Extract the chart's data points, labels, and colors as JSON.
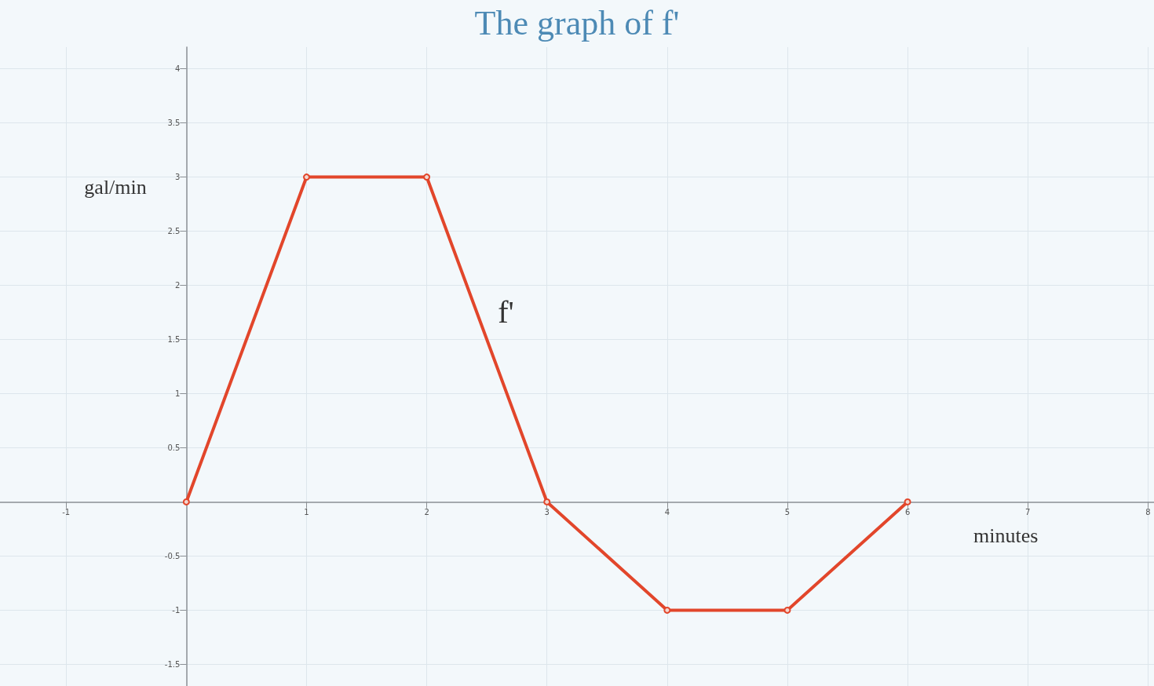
{
  "chart_data": {
    "type": "line",
    "title": "The graph of f'",
    "xlabel": "minutes",
    "ylabel": "gal/min",
    "x": [
      0,
      1,
      2,
      3,
      4,
      5,
      6
    ],
    "series": [
      {
        "name": "f'",
        "color": "#e2462b",
        "values": [
          0,
          3,
          3,
          0,
          -1,
          -1,
          0
        ]
      }
    ],
    "xlim": [
      -1.55,
      8.05
    ],
    "ylim": [
      -1.7,
      4.2
    ],
    "xticks": [
      -1,
      1,
      2,
      3,
      4,
      5,
      6,
      7,
      8
    ],
    "yticks": [
      -1.5,
      -1,
      -0.5,
      0.5,
      1,
      1.5,
      2,
      2.5,
      3,
      3.5,
      4
    ],
    "grid": true,
    "marker": "circle",
    "line_style": "solid"
  }
}
